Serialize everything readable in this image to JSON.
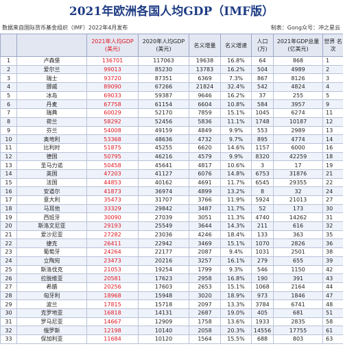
{
  "title": "2021年欧洲各国人均GDP（IMF版）",
  "source": "数据来自国际货币基金组织（IMF）2022年4月发布",
  "credit": "制表：Gong众号：冲之星云",
  "headers": {
    "idx": "",
    "country": "",
    "gdp2021": "2021年人均GDP (美元)",
    "gdp2020": "2020年人均GDP (美元)",
    "nominal_inc": "名义增量",
    "nominal_growth": "名义增速",
    "pop": "人口 (万)",
    "gdp_total": "2021年GDP总量 (亿美元)",
    "world_rank": "世界 名次"
  },
  "rows": [
    {
      "idx": "1",
      "country": "卢森堡",
      "gdp2021": "136701",
      "gdp2020": "117063",
      "inc": "19638",
      "growth": "16.8%",
      "pop": "64",
      "total": "868",
      "rank": "1"
    },
    {
      "idx": "2",
      "country": "爱尔兰",
      "gdp2021": "99013",
      "gdp2020": "85230",
      "inc": "13783",
      "growth": "16.2%",
      "pop": "504",
      "total": "4989",
      "rank": "2"
    },
    {
      "idx": "3",
      "country": "瑞士",
      "gdp2021": "93720",
      "gdp2020": "87351",
      "inc": "6369",
      "growth": "7.3%",
      "pop": "867",
      "total": "8126",
      "rank": "3"
    },
    {
      "idx": "4",
      "country": "挪威",
      "gdp2021": "89090",
      "gdp2020": "67266",
      "inc": "21824",
      "growth": "32.4%",
      "pop": "542",
      "total": "4824",
      "rank": "4"
    },
    {
      "idx": "5",
      "country": "冰岛",
      "gdp2021": "69033",
      "gdp2020": "59387",
      "inc": "9646",
      "growth": "16.2%",
      "pop": "37",
      "total": "255",
      "rank": "5"
    },
    {
      "idx": "6",
      "country": "丹麦",
      "gdp2021": "67758",
      "gdp2020": "61154",
      "inc": "6604",
      "growth": "10.8%",
      "pop": "584",
      "total": "3957",
      "rank": "9"
    },
    {
      "idx": "7",
      "country": "瑞典",
      "gdp2021": "60029",
      "gdp2020": "52170",
      "inc": "7859",
      "growth": "15.1%",
      "pop": "1045",
      "total": "6274",
      "rank": "11"
    },
    {
      "idx": "8",
      "country": "荷兰",
      "gdp2021": "58292",
      "gdp2020": "52456",
      "inc": "5836",
      "growth": "11.1%",
      "pop": "1748",
      "total": "10187",
      "rank": "12"
    },
    {
      "idx": "9",
      "country": "芬兰",
      "gdp2021": "54008",
      "gdp2020": "49159",
      "inc": "4849",
      "growth": "9.9%",
      "pop": "553",
      "total": "2989",
      "rank": "13"
    },
    {
      "idx": "10",
      "country": "奥地利",
      "gdp2021": "53368",
      "gdp2020": "48636",
      "inc": "4732",
      "growth": "9.7%",
      "pop": "895",
      "total": "4774",
      "rank": "14"
    },
    {
      "idx": "11",
      "country": "比利时",
      "gdp2021": "51875",
      "gdp2020": "45255",
      "inc": "6620",
      "growth": "14.6%",
      "pop": "1157",
      "total": "6000",
      "rank": "16"
    },
    {
      "idx": "12",
      "country": "德国",
      "gdp2021": "50795",
      "gdp2020": "46216",
      "inc": "4579",
      "growth": "9.9%",
      "pop": "8320",
      "total": "42259",
      "rank": "18"
    },
    {
      "idx": "13",
      "country": "圣马力诺",
      "gdp2021": "50458",
      "gdp2020": "45641",
      "inc": "4817",
      "growth": "10.6%",
      "pop": "3",
      "total": "17",
      "rank": "19"
    },
    {
      "idx": "14",
      "country": "英国",
      "gdp2021": "47203",
      "gdp2020": "41127",
      "inc": "6076",
      "growth": "14.8%",
      "pop": "6753",
      "total": "31876",
      "rank": "21"
    },
    {
      "idx": "15",
      "country": "法国",
      "gdp2021": "44853",
      "gdp2020": "40162",
      "inc": "4691",
      "growth": "11.7%",
      "pop": "6545",
      "total": "29355",
      "rank": "22"
    },
    {
      "idx": "16",
      "country": "安道尔",
      "gdp2021": "41873",
      "gdp2020": "36974",
      "inc": "4899",
      "growth": "13.2%",
      "pop": "8",
      "total": "32",
      "rank": "24"
    },
    {
      "idx": "17",
      "country": "意大利",
      "gdp2021": "35473",
      "gdp2020": "31707",
      "inc": "3766",
      "growth": "11.9%",
      "pop": "5924",
      "total": "21013",
      "rank": "27"
    },
    {
      "idx": "18",
      "country": "马耳他",
      "gdp2021": "33329",
      "gdp2020": "29842",
      "inc": "3487",
      "growth": "11.7%",
      "pop": "52",
      "total": "173",
      "rank": "30"
    },
    {
      "idx": "19",
      "country": "西班牙",
      "gdp2021": "30090",
      "gdp2020": "27039",
      "inc": "3051",
      "growth": "11.3%",
      "pop": "4740",
      "total": "14262",
      "rank": "31"
    },
    {
      "idx": "20",
      "country": "斯洛文尼亚",
      "gdp2021": "29193",
      "gdp2020": "25549",
      "inc": "3644",
      "growth": "14.3%",
      "pop": "211",
      "total": "616",
      "rank": "32"
    },
    {
      "idx": "21",
      "country": "爱沙尼亚",
      "gdp2021": "27282",
      "gdp2020": "23036",
      "inc": "4246",
      "growth": "18.4%",
      "pop": "133",
      "total": "363",
      "rank": "35"
    },
    {
      "idx": "22",
      "country": "捷克",
      "gdp2021": "26411",
      "gdp2020": "22942",
      "inc": "3469",
      "growth": "15.1%",
      "pop": "1070",
      "total": "2826",
      "rank": "36"
    },
    {
      "idx": "23",
      "country": "葡萄牙",
      "gdp2021": "24264",
      "gdp2020": "22177",
      "inc": "2087",
      "growth": "9.4%",
      "pop": "1031",
      "total": "2501",
      "rank": "38"
    },
    {
      "idx": "24",
      "country": "立陶宛",
      "gdp2021": "23473",
      "gdp2020": "20216",
      "inc": "3257",
      "growth": "16.1%",
      "pop": "279",
      "total": "655",
      "rank": "39"
    },
    {
      "idx": "25",
      "country": "斯洛伐克",
      "gdp2021": "21053",
      "gdp2020": "19254",
      "inc": "1799",
      "growth": "9.3%",
      "pop": "546",
      "total": "1150",
      "rank": "42"
    },
    {
      "idx": "26",
      "country": "拉脱维亚",
      "gdp2021": "20581",
      "gdp2020": "17623",
      "inc": "2958",
      "growth": "16.8%",
      "pop": "190",
      "total": "391",
      "rank": "43"
    },
    {
      "idx": "27",
      "country": "希腊",
      "gdp2021": "20256",
      "gdp2020": "17603",
      "inc": "2653",
      "growth": "15.1%",
      "pop": "1068",
      "total": "2164",
      "rank": "44"
    },
    {
      "idx": "28",
      "country": "匈牙利",
      "gdp2021": "18968",
      "gdp2020": "15948",
      "inc": "3020",
      "growth": "18.9%",
      "pop": "973",
      "total": "1846",
      "rank": "47"
    },
    {
      "idx": "29",
      "country": "波兰",
      "gdp2021": "17815",
      "gdp2020": "15718",
      "inc": "2097",
      "growth": "13.3%",
      "pop": "3784",
      "total": "6741",
      "rank": "48"
    },
    {
      "idx": "30",
      "country": "克罗地亚",
      "gdp2021": "16818",
      "gdp2020": "14131",
      "inc": "2687",
      "growth": "19.0%",
      "pop": "405",
      "total": "681",
      "rank": "51"
    },
    {
      "idx": "31",
      "country": "罗马尼亚",
      "gdp2021": "14667",
      "gdp2020": "12909",
      "inc": "1758",
      "growth": "13.6%",
      "pop": "1933",
      "total": "2835",
      "rank": "58"
    },
    {
      "idx": "32",
      "country": "俄罗斯",
      "gdp2021": "12198",
      "gdp2020": "10140",
      "inc": "2058",
      "growth": "20.3%",
      "pop": "14556",
      "total": "17755",
      "rank": "61"
    },
    {
      "idx": "33",
      "country": "保加利亚",
      "gdp2021": "11684",
      "gdp2020": "10120",
      "inc": "1564",
      "growth": "15.5%",
      "pop": "688",
      "total": "803",
      "rank": "63"
    }
  ]
}
